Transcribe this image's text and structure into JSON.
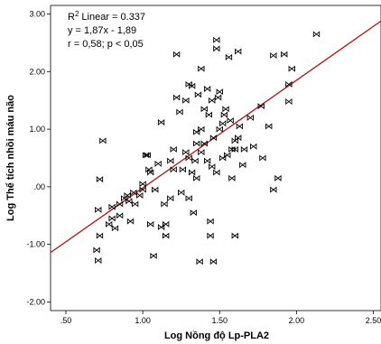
{
  "chart_data": {
    "type": "scatter",
    "title": "",
    "xlabel": "Log Nồng độ Lp-PLA2",
    "ylabel": "Log Thể tích nhồi máu não",
    "xlim": [
      0.4,
      2.55
    ],
    "ylim": [
      -2.15,
      3.15
    ],
    "xticks": [
      0.5,
      1.0,
      1.5,
      2.0,
      2.5
    ],
    "xtick_labels": [
      ".50",
      "1.00",
      "1.50",
      "2.00",
      "2.50"
    ],
    "yticks": [
      -2.0,
      -1.0,
      0.0,
      1.0,
      2.0,
      3.0
    ],
    "ytick_labels": [
      "-2.00",
      "-1.00",
      ".00",
      "1.00",
      "2.00",
      "3.00"
    ],
    "grid": false,
    "fit_line": {
      "slope": 1.87,
      "intercept": -1.89,
      "color": "#b22222"
    },
    "annotations": {
      "r2_label": "Linear = 0.337",
      "equation": "y = 1,87x - 1,89",
      "correlation": "r = 0,58; p < 0,05"
    },
    "marker": "bowtie",
    "series": [
      {
        "points": [
          [
            0.7,
            -1.1
          ],
          [
            0.71,
            -1.28
          ],
          [
            0.72,
            -0.85
          ],
          [
            0.71,
            -0.4
          ],
          [
            0.72,
            0.13
          ],
          [
            0.74,
            0.8
          ],
          [
            0.78,
            -0.65
          ],
          [
            0.8,
            -0.55
          ],
          [
            0.8,
            -0.35
          ],
          [
            0.82,
            -0.72
          ],
          [
            0.85,
            -0.3
          ],
          [
            0.85,
            -0.5
          ],
          [
            0.88,
            -0.2
          ],
          [
            0.9,
            -0.15
          ],
          [
            0.91,
            -0.25
          ],
          [
            0.92,
            -0.6
          ],
          [
            0.94,
            -0.1
          ],
          [
            0.95,
            -0.3
          ],
          [
            0.98,
            -0.15
          ],
          [
            1.0,
            -0.05
          ],
          [
            1.0,
            0.05
          ],
          [
            1.02,
            0.55
          ],
          [
            1.03,
            0.55
          ],
          [
            1.04,
            0.3
          ],
          [
            1.05,
            0.25
          ],
          [
            1.05,
            -0.65
          ],
          [
            1.07,
            -1.2
          ],
          [
            1.08,
            -0.05
          ],
          [
            1.1,
            0.4
          ],
          [
            1.12,
            1.12
          ],
          [
            1.12,
            -0.7
          ],
          [
            1.14,
            -0.3
          ],
          [
            1.15,
            -0.85
          ],
          [
            1.15,
            -0.65
          ],
          [
            1.18,
            0.45
          ],
          [
            1.18,
            -0.2
          ],
          [
            1.2,
            0.3
          ],
          [
            1.2,
            0.65
          ],
          [
            1.22,
            1.55
          ],
          [
            1.22,
            2.3
          ],
          [
            1.24,
            1.3
          ],
          [
            1.25,
            -0.1
          ],
          [
            1.26,
            0.3
          ],
          [
            1.28,
            0.6
          ],
          [
            1.28,
            1.5
          ],
          [
            1.3,
            1.78
          ],
          [
            1.3,
            0.5
          ],
          [
            1.3,
            -0.2
          ],
          [
            1.32,
            1.75
          ],
          [
            1.32,
            0.25
          ],
          [
            1.33,
            -0.45
          ],
          [
            1.34,
            0.45
          ],
          [
            1.35,
            0.95
          ],
          [
            1.35,
            0.75
          ],
          [
            1.35,
            0.15
          ],
          [
            1.36,
            1.6
          ],
          [
            1.37,
            -1.3
          ],
          [
            1.38,
            2.05
          ],
          [
            1.38,
            0.6
          ],
          [
            1.38,
            1.0
          ],
          [
            1.4,
            1.35
          ],
          [
            1.4,
            0.75
          ],
          [
            1.42,
            1.7
          ],
          [
            1.42,
            0.45
          ],
          [
            1.43,
            1.25
          ],
          [
            1.44,
            -0.6
          ],
          [
            1.44,
            -0.85
          ],
          [
            1.45,
            0.35
          ],
          [
            1.45,
            1.5
          ],
          [
            1.46,
            0.85
          ],
          [
            1.46,
            -1.3
          ],
          [
            1.48,
            2.4
          ],
          [
            1.48,
            2.55
          ],
          [
            1.48,
            0.25
          ],
          [
            1.49,
            1.55
          ],
          [
            1.5,
            1.0
          ],
          [
            1.5,
            1.65
          ],
          [
            1.52,
            1.1
          ],
          [
            1.52,
            0.5
          ],
          [
            1.53,
            1.25
          ],
          [
            1.54,
            1.35
          ],
          [
            1.55,
            0.55
          ],
          [
            1.56,
            2.25
          ],
          [
            1.57,
            1.15
          ],
          [
            1.58,
            0.15
          ],
          [
            1.58,
            0.65
          ],
          [
            1.6,
            0.8
          ],
          [
            1.6,
            0.65
          ],
          [
            1.6,
            -0.85
          ],
          [
            1.62,
            0.85
          ],
          [
            1.62,
            2.35
          ],
          [
            1.63,
            1.05
          ],
          [
            1.65,
            0.38
          ],
          [
            1.66,
            0.65
          ],
          [
            1.7,
            1.2
          ],
          [
            1.72,
            0.7
          ],
          [
            1.77,
            1.4
          ],
          [
            1.78,
            0.5
          ],
          [
            1.82,
            1.05
          ],
          [
            1.85,
            2.28
          ],
          [
            1.85,
            -0.05
          ],
          [
            1.88,
            0.15
          ],
          [
            1.92,
            2.3
          ],
          [
            1.95,
            1.78
          ],
          [
            1.95,
            1.48
          ],
          [
            1.97,
            2.05
          ],
          [
            2.13,
            2.65
          ]
        ]
      }
    ]
  }
}
